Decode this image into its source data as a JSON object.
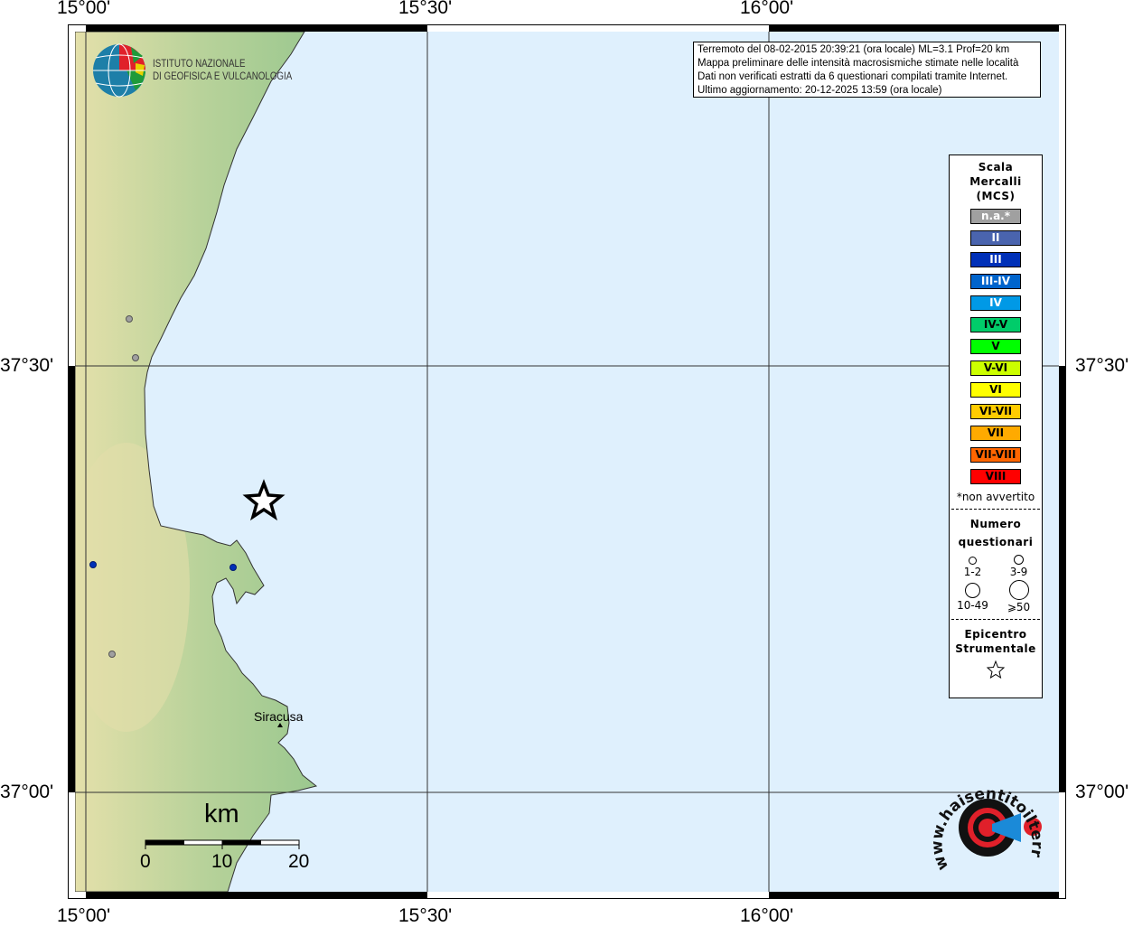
{
  "axes": {
    "top_ticks": [
      "15°00'",
      "15°30'",
      "16°00'"
    ],
    "bottom_ticks": [
      "15°00'",
      "15°30'",
      "16°00'"
    ],
    "left_ticks": [
      "37°30'",
      "37°00'"
    ],
    "right_ticks": [
      "37°30'",
      "37°00'"
    ]
  },
  "logo_ingv": {
    "line1": "ISTITUTO NAZIONALE",
    "line2": "DI GEOFISICA E VULCANOLOGIA"
  },
  "info": [
    "Terremoto del 08-02-2015 20:39:21 (ora locale) ML=3.1 Prof=20 km",
    "Mappa preliminare delle intensità macrosismiche stimate nelle località",
    "Dati non verificati estratti da 6 questionari compilati tramite Internet.",
    "Ultimo aggiornamento: 20-12-2025 13:59 (ora locale)"
  ],
  "legend": {
    "title": [
      "Scala",
      "Mercalli",
      "(MCS)"
    ],
    "scale": [
      {
        "label": "n.a.*",
        "color": "#a0a0a0",
        "text": "#ffffff"
      },
      {
        "label": "II",
        "color": "#4a64ae",
        "text": "#ffffff"
      },
      {
        "label": "III",
        "color": "#0030b8",
        "text": "#ffffff"
      },
      {
        "label": "III-IV",
        "color": "#0064cc",
        "text": "#ffffff"
      },
      {
        "label": "IV",
        "color": "#0099e6",
        "text": "#ffffff"
      },
      {
        "label": "IV-V",
        "color": "#00cc6a",
        "text": "#000000"
      },
      {
        "label": "V",
        "color": "#00ff00",
        "text": "#000000"
      },
      {
        "label": "V-VI",
        "color": "#ccff00",
        "text": "#000000"
      },
      {
        "label": "VI",
        "color": "#ffff00",
        "text": "#000000"
      },
      {
        "label": "VI-VII",
        "color": "#ffcc00",
        "text": "#000000"
      },
      {
        "label": "VII",
        "color": "#ffaa00",
        "text": "#000000"
      },
      {
        "label": "VII-VIII",
        "color": "#ff6600",
        "text": "#000000"
      },
      {
        "label": "VIII",
        "color": "#ff0000",
        "text": "#000000"
      }
    ],
    "note": "*non avvertito",
    "count_title": [
      "Numero",
      "questionari"
    ],
    "counts": [
      "1-2",
      "3-9",
      "10-49",
      "⩾50"
    ],
    "epicenter_title": [
      "Epicentro",
      "Strumentale"
    ]
  },
  "map": {
    "city": "Siracusa",
    "scale_unit": "km",
    "scale_labels": [
      "0",
      "10",
      "20"
    ],
    "epicenter_icon": "star-icon",
    "colors": {
      "sea": "#dff0fd",
      "land": "#9ec98f",
      "observed_iii": "#0030b8",
      "not_felt": "#a0a0a0"
    }
  },
  "logo_hsit": {
    "text": "www.haisentitoilterremoto.it"
  }
}
